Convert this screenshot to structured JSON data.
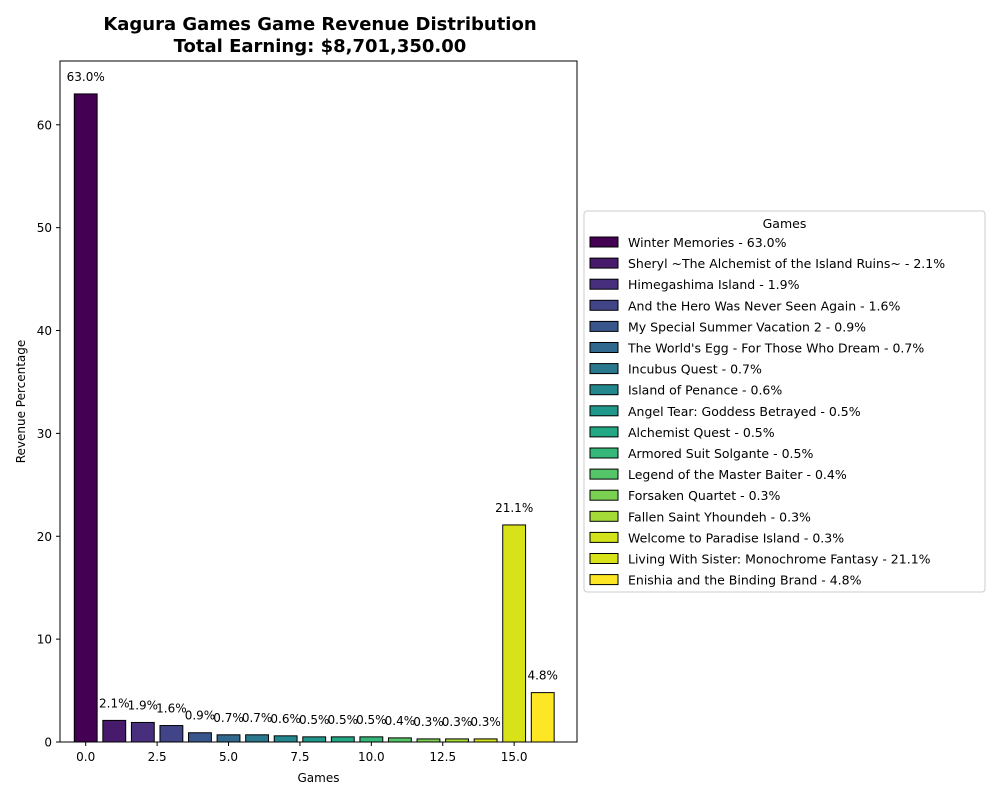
{
  "chart_data": {
    "type": "bar",
    "title_line1": "Kagura Games Game Revenue Distribution",
    "title_line2": "Total Earning: $8,701,350.00",
    "xlabel": "Games",
    "ylabel": "Revenue Percentage",
    "xlim": [
      -0.9,
      17.2
    ],
    "ylim": [
      0,
      66.2
    ],
    "xticks": [
      0,
      2.5,
      5,
      7.5,
      10,
      12.5,
      15
    ],
    "xtick_labels": [
      "0.0",
      "2.5",
      "5.0",
      "7.5",
      "10.0",
      "12.5",
      "15.0"
    ],
    "yticks": [
      0,
      10,
      20,
      30,
      40,
      50,
      60
    ],
    "ytick_labels": [
      "0",
      "10",
      "20",
      "30",
      "40",
      "50",
      "60"
    ],
    "legend_title": "Games",
    "legend_position": "center-right outside",
    "grid": false,
    "bars": [
      {
        "x": 0,
        "value": 63.0,
        "label": "63.0%",
        "name": "Winter Memories",
        "legend": "Winter Memories - 63.0%",
        "color": "#440154"
      },
      {
        "x": 1,
        "value": 2.1,
        "label": "2.1%",
        "name": "Sheryl ~The Alchemist of the Island Ruins~",
        "legend": "Sheryl ~The Alchemist of the Island Ruins~ - 2.1%",
        "color": "#481a6c"
      },
      {
        "x": 2,
        "value": 1.9,
        "label": "1.9%",
        "name": "Himegashima Island",
        "legend": "Himegashima Island - 1.9%",
        "color": "#472f7d"
      },
      {
        "x": 3,
        "value": 1.6,
        "label": "1.6%",
        "name": "And the Hero Was Never Seen Again",
        "legend": "And the Hero Was Never Seen Again - 1.6%",
        "color": "#414487"
      },
      {
        "x": 4,
        "value": 0.9,
        "label": "0.9%",
        "name": "My Special Summer Vacation 2",
        "legend": "My Special Summer Vacation 2 - 0.9%",
        "color": "#39568c"
      },
      {
        "x": 5,
        "value": 0.7,
        "label": "0.7%",
        "name": "The World's Egg - For Those Who Dream",
        "legend": "The World's Egg - For Those Who Dream - 0.7%",
        "color": "#31688e"
      },
      {
        "x": 6,
        "value": 0.7,
        "label": "0.7%",
        "name": "Incubus Quest",
        "legend": "Incubus Quest - 0.7%",
        "color": "#2a788e"
      },
      {
        "x": 7,
        "value": 0.6,
        "label": "0.6%",
        "name": "Island of Penance",
        "legend": "Island of Penance - 0.6%",
        "color": "#23888e"
      },
      {
        "x": 8,
        "value": 0.5,
        "label": "0.5%",
        "name": "Angel Tear: Goddess Betrayed",
        "legend": "Angel Tear: Goddess Betrayed - 0.5%",
        "color": "#1f988b"
      },
      {
        "x": 9,
        "value": 0.5,
        "label": "0.5%",
        "name": "Alchemist Quest",
        "legend": "Alchemist Quest - 0.5%",
        "color": "#22a884"
      },
      {
        "x": 10,
        "value": 0.5,
        "label": "0.5%",
        "name": "Armored Suit Solgante",
        "legend": "Armored Suit Solgante - 0.5%",
        "color": "#35b779"
      },
      {
        "x": 11,
        "value": 0.4,
        "label": "0.4%",
        "name": "Legend of the Master Baiter",
        "legend": "Legend of the Master Baiter - 0.4%",
        "color": "#54c568"
      },
      {
        "x": 12,
        "value": 0.3,
        "label": "0.3%",
        "name": "Forsaken Quartet",
        "legend": "Forsaken Quartet - 0.3%",
        "color": "#7ad151"
      },
      {
        "x": 13,
        "value": 0.3,
        "label": "0.3%",
        "name": "Fallen Saint Yhoundeh",
        "legend": "Fallen Saint Yhoundeh - 0.3%",
        "color": "#a5db36"
      },
      {
        "x": 14,
        "value": 0.3,
        "label": "0.3%",
        "name": "Welcome to Paradise Island",
        "legend": "Welcome to Paradise Island - 0.3%",
        "color": "#d2e21b"
      },
      {
        "x": 15,
        "value": 21.1,
        "label": "21.1%",
        "name": "Living With Sister: Monochrome Fantasy",
        "legend": "Living With Sister: Monochrome Fantasy - 21.1%",
        "color": "#d8e219"
      },
      {
        "x": 16,
        "value": 4.8,
        "label": "4.8%",
        "name": "Enishia and the Binding Brand",
        "legend": "Enishia and the Binding Brand - 4.8%",
        "color": "#fde725"
      }
    ]
  }
}
